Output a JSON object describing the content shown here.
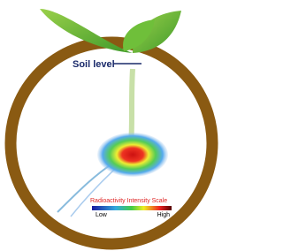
{
  "labels": {
    "soil_level": "Soil level",
    "scale_title": "Radioactivity Intensity Scale",
    "low": "Low",
    "high": "High"
  }
}
